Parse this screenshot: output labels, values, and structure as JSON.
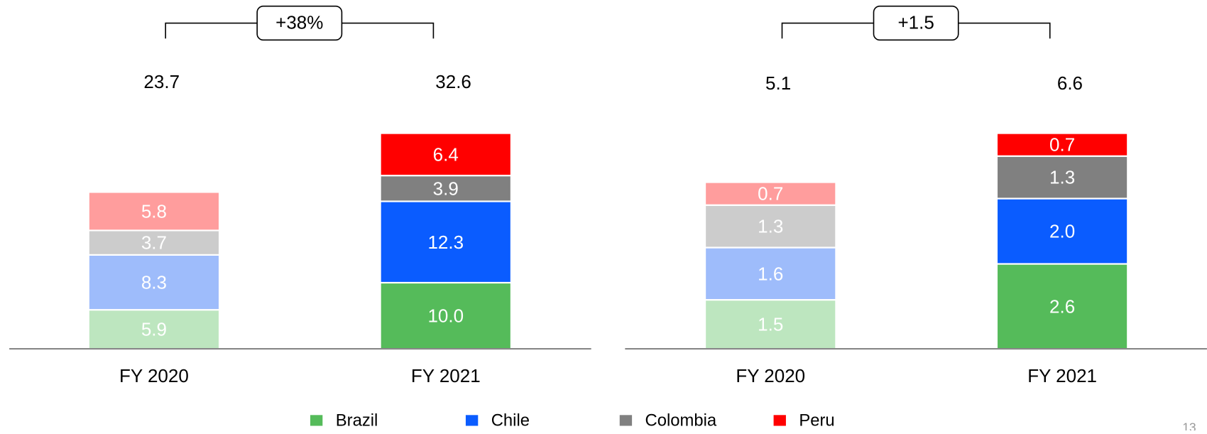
{
  "chart_data": [
    {
      "type": "bar",
      "stacked": true,
      "annotation": "+38%",
      "categories": [
        "FY 2020",
        "FY 2021"
      ],
      "totals": [
        23.7,
        32.6
      ],
      "series": [
        {
          "name": "Brazil",
          "color": "#55bb5a",
          "colors": [
            "#bde6bf",
            "#55bb5a"
          ],
          "values": [
            5.9,
            10.0
          ],
          "value_labels": [
            "5.9",
            "10.0"
          ]
        },
        {
          "name": "Chile",
          "color": "#0a5cff",
          "colors": [
            "#9ebcfb",
            "#0a5cff"
          ],
          "values": [
            8.3,
            12.3
          ],
          "value_labels": [
            "8.3",
            "12.3"
          ]
        },
        {
          "name": "Colombia",
          "color": "#808080",
          "colors": [
            "#cccccc",
            "#808080"
          ],
          "values": [
            3.7,
            3.9
          ],
          "value_labels": [
            "3.7",
            "3.9"
          ]
        },
        {
          "name": "Peru",
          "color": "#ff0000",
          "colors": [
            "#ff9d9d",
            "#ff0000"
          ],
          "values": [
            5.8,
            6.4
          ],
          "value_labels": [
            "5.8",
            "6.4"
          ]
        }
      ]
    },
    {
      "type": "bar",
      "stacked": true,
      "annotation": "+1.5",
      "categories": [
        "FY 2020",
        "FY 2021"
      ],
      "totals": [
        5.1,
        6.6
      ],
      "series": [
        {
          "name": "Brazil",
          "color": "#55bb5a",
          "colors": [
            "#bde6bf",
            "#55bb5a"
          ],
          "values": [
            1.5,
            2.6
          ],
          "value_labels": [
            "1.5",
            "2.6"
          ]
        },
        {
          "name": "Chile",
          "color": "#0a5cff",
          "colors": [
            "#9ebcfb",
            "#0a5cff"
          ],
          "values": [
            1.6,
            2.0
          ],
          "value_labels": [
            "1.6",
            "2.0"
          ]
        },
        {
          "name": "Colombia",
          "color": "#808080",
          "colors": [
            "#cccccc",
            "#808080"
          ],
          "values": [
            1.3,
            1.3
          ],
          "value_labels": [
            "1.3",
            "1.3"
          ]
        },
        {
          "name": "Peru",
          "color": "#ff0000",
          "colors": [
            "#ff9d9d",
            "#ff0000"
          ],
          "values": [
            0.7,
            0.7
          ],
          "value_labels": [
            "0.7",
            "0.7"
          ]
        }
      ]
    }
  ],
  "page_number": "13"
}
